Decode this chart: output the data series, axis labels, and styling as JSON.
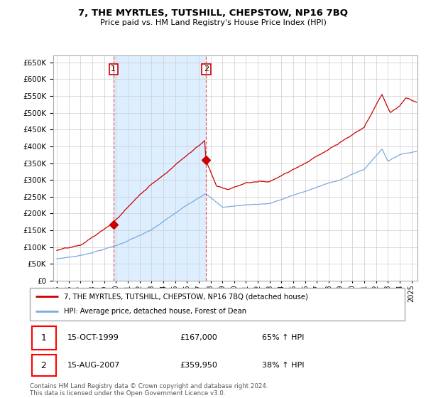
{
  "title": "7, THE MYRTLES, TUTSHILL, CHEPSTOW, NP16 7BQ",
  "subtitle": "Price paid vs. HM Land Registry's House Price Index (HPI)",
  "legend_line1": "7, THE MYRTLES, TUTSHILL, CHEPSTOW, NP16 7BQ (detached house)",
  "legend_line2": "HPI: Average price, detached house, Forest of Dean",
  "footnote": "Contains HM Land Registry data © Crown copyright and database right 2024.\nThis data is licensed under the Open Government Licence v3.0.",
  "sale1_date": "15-OCT-1999",
  "sale1_price": "£167,000",
  "sale1_hpi": "65% ↑ HPI",
  "sale2_date": "15-AUG-2007",
  "sale2_price": "£359,950",
  "sale2_hpi": "38% ↑ HPI",
  "sale1_year": 1999.79,
  "sale1_value": 167000,
  "sale2_year": 2007.62,
  "sale2_value": 359950,
  "red_color": "#cc0000",
  "blue_color": "#7aaadd",
  "shade_color": "#ddeeff",
  "dashed_color": "#dd4444",
  "grid_color": "#cccccc",
  "background_color": "#ffffff",
  "ylim": [
    0,
    670000
  ],
  "xlim_start": 1994.7,
  "xlim_end": 2025.5
}
